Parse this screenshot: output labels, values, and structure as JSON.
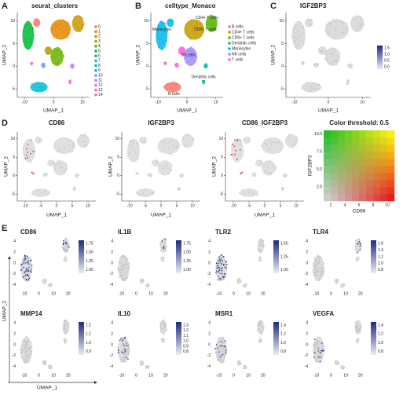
{
  "figure": {
    "panel_a": {
      "letter": "A",
      "title": "seurat_clusters",
      "x_label": "UMAP_1",
      "y_label": "UMAP_2",
      "xticks": [
        "-10",
        "0",
        "10"
      ],
      "yticks": [
        "10",
        "5",
        "0",
        "-5"
      ],
      "legend": [
        {
          "name": "0",
          "color": "#F8766D"
        },
        {
          "name": "1",
          "color": "#E58700"
        },
        {
          "name": "2",
          "color": "#C99800"
        },
        {
          "name": "3",
          "color": "#A3A500"
        },
        {
          "name": "4",
          "color": "#6BB100"
        },
        {
          "name": "5",
          "color": "#00BA38"
        },
        {
          "name": "6",
          "color": "#00BF7D"
        },
        {
          "name": "7",
          "color": "#00C0AF"
        },
        {
          "name": "8",
          "color": "#00BCD8"
        },
        {
          "name": "9",
          "color": "#00B0F6"
        },
        {
          "name": "10",
          "color": "#619CFF"
        },
        {
          "name": "11",
          "color": "#B983FF"
        },
        {
          "name": "12",
          "color": "#E76BF3"
        },
        {
          "name": "13",
          "color": "#FD61D1"
        },
        {
          "name": "14",
          "color": "#FF67A4"
        }
      ]
    },
    "panel_b": {
      "letter": "B",
      "title": "celltype_Monaco",
      "x_label": "UMAP_1",
      "y_label": "UMAP_2",
      "xticks": [
        "-10",
        "0",
        "10"
      ],
      "yticks": [
        "10",
        "5",
        "0",
        "-5"
      ],
      "legend": [
        {
          "name": "B cells",
          "color": "#F8766D"
        },
        {
          "name": "CD4+ T cells",
          "color": "#C49A00"
        },
        {
          "name": "CD8+ T cells",
          "color": "#53B400"
        },
        {
          "name": "Dendritic cells",
          "color": "#00C094"
        },
        {
          "name": "Monocytes",
          "color": "#00B6EB"
        },
        {
          "name": "NK cells",
          "color": "#A58AFF"
        },
        {
          "name": "T cells",
          "color": "#FB61D7"
        }
      ],
      "annotations": [
        "Monocytes",
        "CD4+ T cells",
        "CD8+ T cells",
        "NK cells",
        "B cells",
        "Dendritic cells"
      ]
    },
    "panel_c": {
      "letter": "C",
      "title": "IGF2BP3",
      "x_label": "UMAP_1",
      "y_label": "UMAP_2",
      "xticks": [
        "-10",
        "0",
        "10"
      ],
      "yticks": [
        "10",
        "5",
        "0",
        "-5"
      ],
      "colorbar": [
        "1.5",
        "1.0",
        "0.5",
        "0.0"
      ]
    },
    "panel_d": {
      "letter": "D",
      "plots": [
        {
          "title": "CD86"
        },
        {
          "title": "IGF2BP3"
        },
        {
          "title": "CD86_IGF2BP3"
        }
      ],
      "x_label": "UMAP_1",
      "y_label": "UMAP_2",
      "xticks": [
        "-10",
        "-5",
        "0",
        "5",
        "10"
      ],
      "yticks": [
        "10",
        "5",
        "0",
        "-5"
      ],
      "threshold": {
        "title": "Color threshold: 0.5",
        "x_label": "CD86",
        "y_label": "IGF2BP3",
        "xticks": [
          "2",
          "4",
          "6",
          "8",
          "10"
        ],
        "yticks": [
          "10.0",
          "7.5",
          "5.0",
          "2.5"
        ]
      }
    },
    "panel_e": {
      "letter": "E",
      "x_label": "UMAP_1",
      "y_label": "UMAP_2",
      "xticks": [
        "-10",
        "0",
        "10",
        "20"
      ],
      "yticks": [
        "4",
        "2",
        "0",
        "-2",
        "-4"
      ],
      "plots": [
        {
          "title": "CD86",
          "colorbar": [
            "1.75",
            "1.50",
            "1.25",
            "1.00"
          ]
        },
        {
          "title": "IL1B",
          "colorbar": [
            "1.75",
            "1.50",
            "1.25",
            "1.00"
          ]
        },
        {
          "title": "TLR2",
          "colorbar": [
            "1.50",
            "1.25",
            "1.00"
          ]
        },
        {
          "title": "TLR4",
          "colorbar": [
            "1.6",
            "1.4",
            "1.2",
            "1.0",
            "0.8"
          ]
        },
        {
          "title": "MMP14",
          "colorbar": [
            "1.2",
            "1.1",
            "1.0",
            "0.9"
          ]
        },
        {
          "title": "IL10",
          "colorbar": [
            "1.3",
            "1.2",
            "1.1",
            "1.0",
            "0.9",
            "0.8"
          ]
        },
        {
          "title": "MSR1",
          "colorbar": [
            "1.4",
            "1.2",
            "1.0",
            "0.8"
          ]
        },
        {
          "title": "VEGFA",
          "colorbar": [
            "1.4",
            "1.2",
            "1.0",
            "0.8"
          ]
        }
      ]
    }
  }
}
